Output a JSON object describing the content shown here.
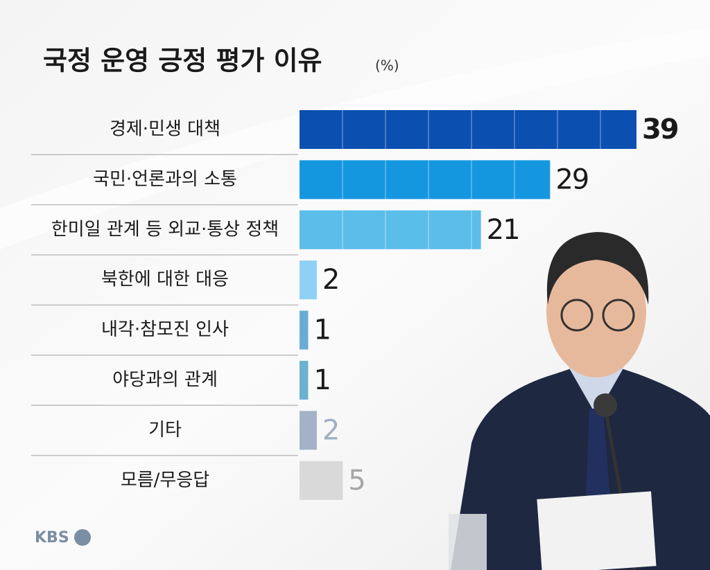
{
  "chart_data": {
    "type": "bar",
    "orientation": "horizontal",
    "title": "국정 운영 긍정 평가 이유",
    "unit": "(%)",
    "categories": [
      "경제·민생 대책",
      "국민·언론과의 소통",
      "한미일 관계 등 외교·통상 정책",
      "북한에 대한 대응",
      "내각·참모진 인사",
      "야당과의 관계",
      "기타",
      "모름/무응답"
    ],
    "values": [
      39,
      29,
      21,
      2,
      1,
      1,
      2,
      5
    ],
    "colors": [
      "#0b4fb1",
      "#1597e0",
      "#5bbde9",
      "#8fd1f6",
      "#69acd6",
      "#6bb2cf",
      "#a3b2c6",
      "#d9d9d9"
    ],
    "label_colors": [
      "#1a1a1a",
      "#1a1a1a",
      "#1a1a1a",
      "#1a1a1a",
      "#1a1a1a",
      "#1a1a1a",
      "#9eb0c5",
      "#a6a6a6"
    ]
  },
  "logo": "KBS"
}
